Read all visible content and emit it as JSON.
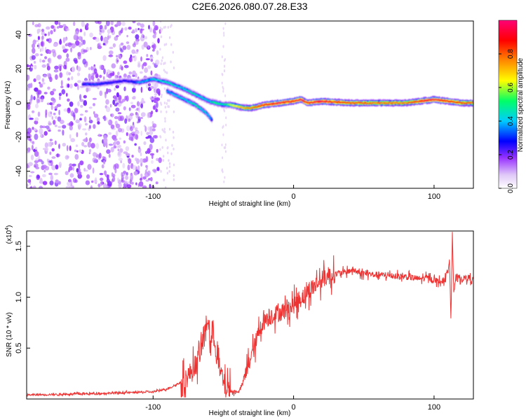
{
  "chart_data": [
    {
      "type": "heatmap",
      "title": "C2E6.2026.080.07.28.E33",
      "xlabel": "Height of straight line (km)",
      "ylabel": "Frequency (Hz)",
      "xlim": [
        -190,
        128
      ],
      "ylim": [
        -50,
        48
      ],
      "x_ticks": [
        -100,
        0,
        100
      ],
      "y_ticks": [
        40,
        20,
        0,
        -20,
        -40
      ],
      "colorbar": {
        "label": "Normalized spectral amplitude",
        "range": [
          0.0,
          1.0
        ],
        "ticks": [
          0.0,
          0.2,
          0.4,
          0.6,
          0.8
        ],
        "colors": [
          "#ffffff",
          "#e0c8f8",
          "#9933ff",
          "#0000ff",
          "#00ccff",
          "#00ff66",
          "#ffff00",
          "#ff8800",
          "#ff0000",
          "#ff0077"
        ]
      },
      "ridge": {
        "x": [
          -150,
          -140,
          -120,
          -110,
          -100,
          -90,
          -80,
          -70,
          -60,
          -55,
          -50,
          -45,
          -40,
          -35,
          -30,
          -25,
          -20,
          -10,
          0,
          5,
          10,
          20,
          40,
          60,
          80,
          90,
          100,
          110,
          120,
          128
        ],
        "y": [
          11,
          11,
          13,
          12,
          14,
          12,
          9,
          5,
          1,
          0,
          -1,
          -1,
          -2,
          -3,
          -3,
          -2,
          -1,
          0,
          1,
          2,
          0,
          1,
          0,
          0,
          0,
          1,
          2,
          1,
          0,
          0
        ],
        "amplitude": [
          0.35,
          0.35,
          0.3,
          0.4,
          0.45,
          0.5,
          0.45,
          0.5,
          0.45,
          0.55,
          0.5,
          0.6,
          0.7,
          0.75,
          0.8,
          0.85,
          0.9,
          0.95,
          0.9,
          0.95,
          0.9,
          0.95,
          0.85,
          0.8,
          0.8,
          0.9,
          0.95,
          0.9,
          0.85,
          0.8
        ]
      },
      "secondary_ridge": {
        "x": [
          -90,
          -80,
          -70,
          -62,
          -58
        ],
        "y": [
          7,
          3,
          -1,
          -6,
          -10
        ],
        "amplitude": [
          0.4,
          0.45,
          0.5,
          0.45,
          0.4
        ]
      }
    },
    {
      "type": "line",
      "xlabel": "Height of straight line (km)",
      "ylabel": "SNR (10 * v/v)",
      "y_multiplier": "(x10",
      "y_multiplier_exp": "4",
      "xlim": [
        -190,
        128
      ],
      "ylim": [
        0,
        16500
      ],
      "x_ticks": [
        -100,
        0,
        100
      ],
      "y_ticks": [
        5000,
        10000,
        15000
      ],
      "y_tick_labels": [
        "0.5",
        "1.0",
        "1.5"
      ],
      "color": "#ee3333",
      "series": [
        {
          "name": "SNR",
          "x": [
            -190,
            -150,
            -100,
            -90,
            -85,
            -78,
            -72,
            -68,
            -64,
            -61,
            -59,
            -57,
            -55,
            -52,
            -49,
            -46,
            -42,
            -38,
            -34,
            -31,
            -28,
            -25,
            -22,
            -18,
            -14,
            -10,
            -6,
            -2,
            2,
            6,
            10,
            14,
            18,
            22,
            26,
            30,
            34,
            38,
            42,
            46,
            50,
            60,
            70,
            80,
            90,
            95,
            100,
            105,
            108,
            110,
            111,
            112,
            113,
            114,
            116,
            120,
            124,
            128
          ],
          "y": [
            400,
            500,
            700,
            1000,
            1300,
            1800,
            2800,
            3800,
            6000,
            8000,
            5000,
            7000,
            4500,
            2500,
            1300,
            900,
            600,
            900,
            2500,
            4000,
            5000,
            6500,
            7500,
            8000,
            8300,
            8500,
            8700,
            9000,
            9500,
            10000,
            10500,
            11000,
            11500,
            11900,
            12100,
            12300,
            12400,
            12500,
            12700,
            12400,
            12300,
            12200,
            12100,
            12000,
            11800,
            11900,
            11700,
            11500,
            11800,
            12500,
            14000,
            8000,
            16500,
            10500,
            12000,
            11800,
            11900,
            11700
          ]
        }
      ]
    }
  ]
}
